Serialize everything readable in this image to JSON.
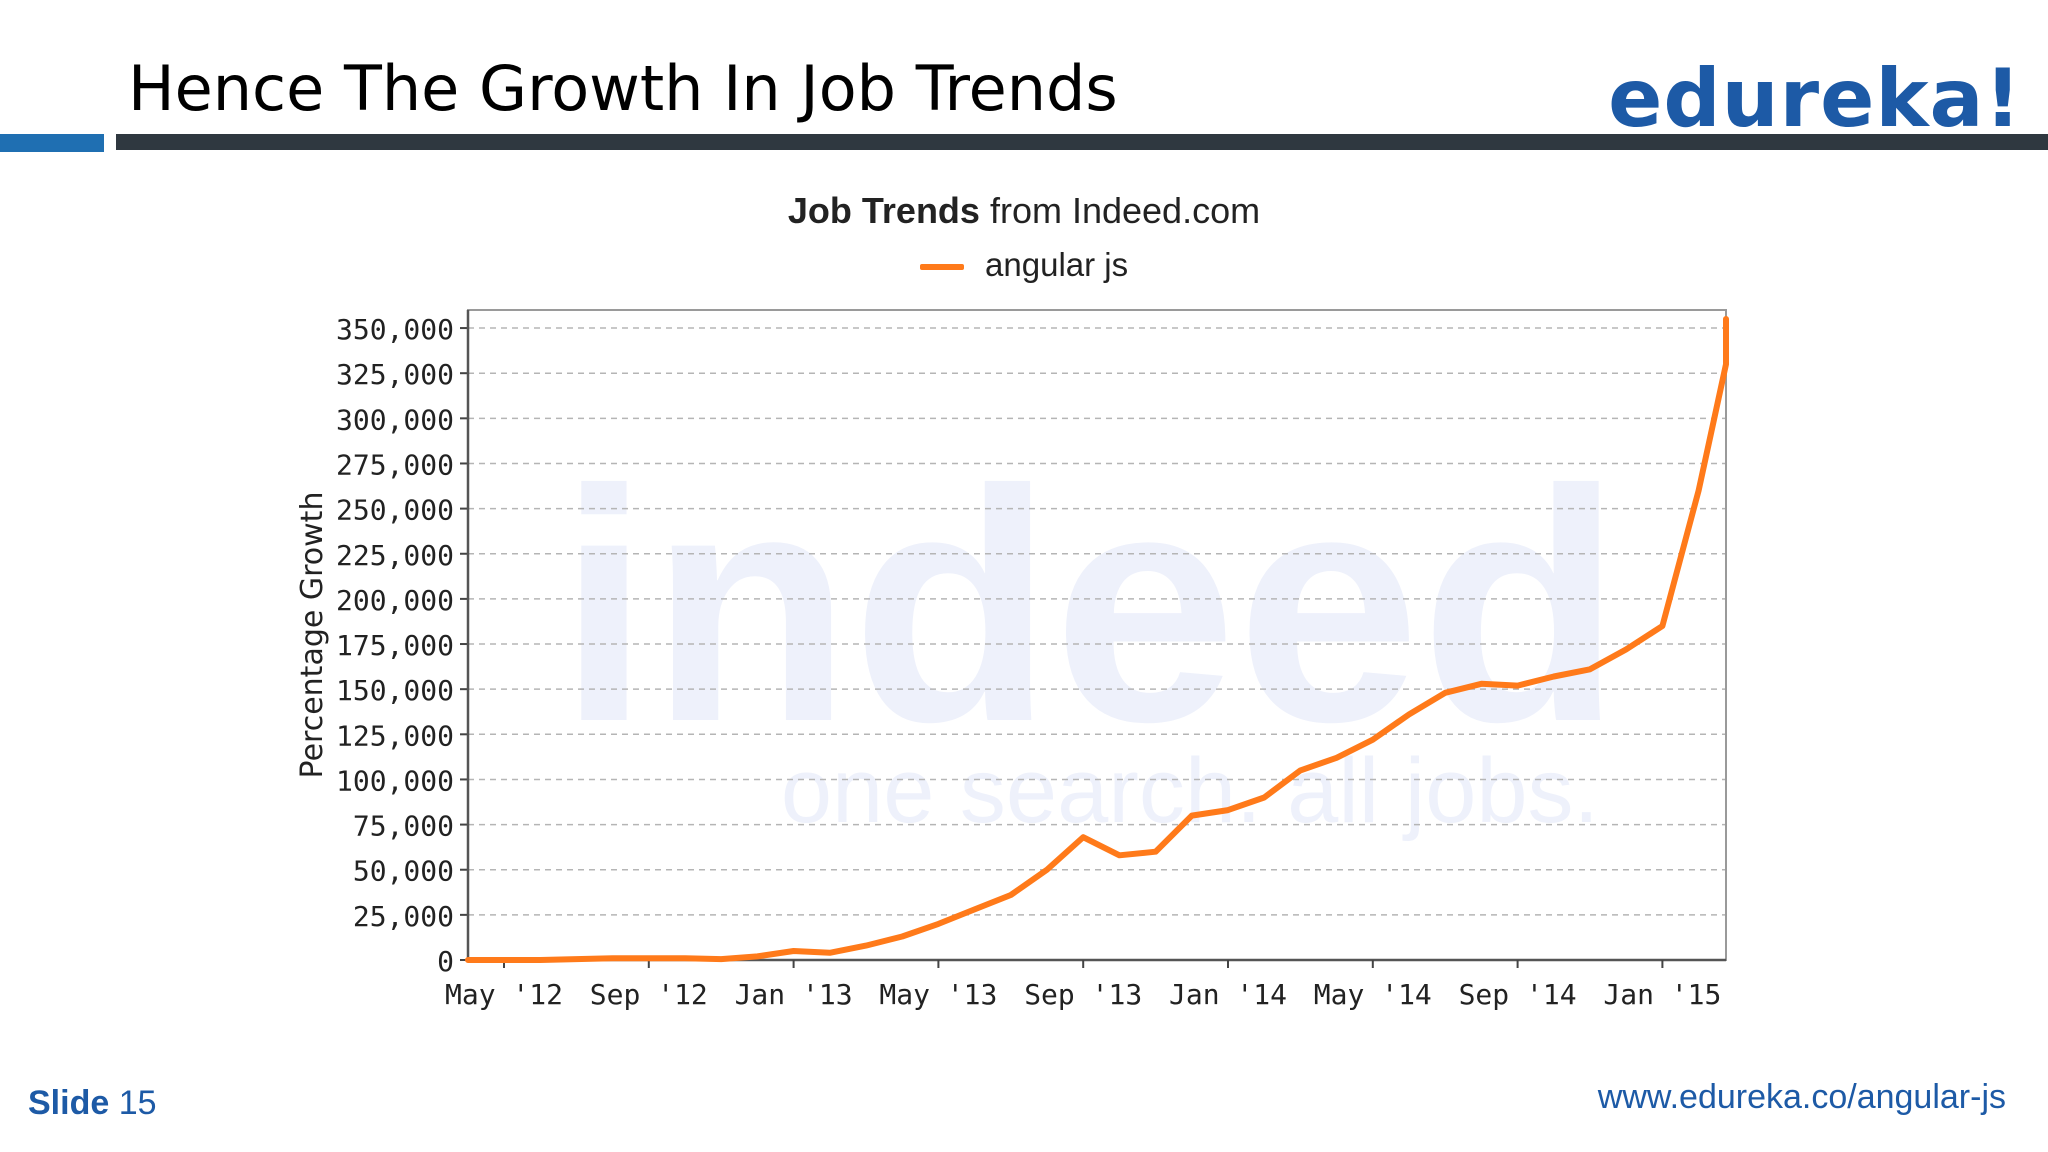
{
  "slide": {
    "title": "Hence The Growth In Job Trends",
    "logo_text": "edureka!",
    "slide_label": "Slide",
    "slide_number": "15",
    "url": "www.edureka.co/angular-js"
  },
  "colors": {
    "brand_blue": "#1d5aa6",
    "rule_dark": "#2f3840",
    "series_orange": "#ff7a1a",
    "grid": "#b5b5b5"
  },
  "chart_data": {
    "type": "line",
    "title_bold": "Job Trends",
    "title_rest": "from Indeed.com",
    "ylabel": "Percentage Growth",
    "xlabel": "",
    "ylim": [
      0,
      360000
    ],
    "grid": true,
    "legend_position": "top-center",
    "watermark": [
      "indeed",
      "one search. all jobs."
    ],
    "x_tick_labels": [
      "May '12",
      "Sep '12",
      "Jan '13",
      "May '13",
      "Sep '13",
      "Jan '14",
      "May '14",
      "Sep '14",
      "Jan '15"
    ],
    "y_tick_labels": [
      "0",
      "25,000",
      "50,000",
      "75,000",
      "100,000",
      "125,000",
      "150,000",
      "175,000",
      "200,000",
      "225,000",
      "250,000",
      "275,000",
      "300,000",
      "325,000",
      "350,000"
    ],
    "series": [
      {
        "name": "angular js",
        "color": "#ff7a1a",
        "points": [
          [
            "2012-04",
            0
          ],
          [
            "2012-05",
            0
          ],
          [
            "2012-06",
            0
          ],
          [
            "2012-07",
            500
          ],
          [
            "2012-08",
            1000
          ],
          [
            "2012-09",
            1000
          ],
          [
            "2012-10",
            1000
          ],
          [
            "2012-11",
            500
          ],
          [
            "2012-12",
            2000
          ],
          [
            "2013-01",
            5000
          ],
          [
            "2013-02",
            4000
          ],
          [
            "2013-03",
            8000
          ],
          [
            "2013-04",
            13000
          ],
          [
            "2013-05",
            20000
          ],
          [
            "2013-06",
            28000
          ],
          [
            "2013-07",
            36000
          ],
          [
            "2013-08",
            50000
          ],
          [
            "2013-09",
            68000
          ],
          [
            "2013-10",
            58000
          ],
          [
            "2013-11",
            60000
          ],
          [
            "2013-12",
            80000
          ],
          [
            "2014-01",
            83000
          ],
          [
            "2014-02",
            90000
          ],
          [
            "2014-03",
            105000
          ],
          [
            "2014-04",
            112000
          ],
          [
            "2014-05",
            122000
          ],
          [
            "2014-06",
            136000
          ],
          [
            "2014-07",
            148000
          ],
          [
            "2014-08",
            153000
          ],
          [
            "2014-09",
            152000
          ],
          [
            "2014-10",
            157000
          ],
          [
            "2014-11",
            161000
          ],
          [
            "2014-12",
            172000
          ],
          [
            "2015-01",
            185000
          ],
          [
            "2015-02",
            260000
          ],
          [
            "2015-03",
            330000
          ],
          [
            "2015-04",
            355000
          ],
          [
            "2015-05",
            353000
          ]
        ]
      }
    ]
  }
}
